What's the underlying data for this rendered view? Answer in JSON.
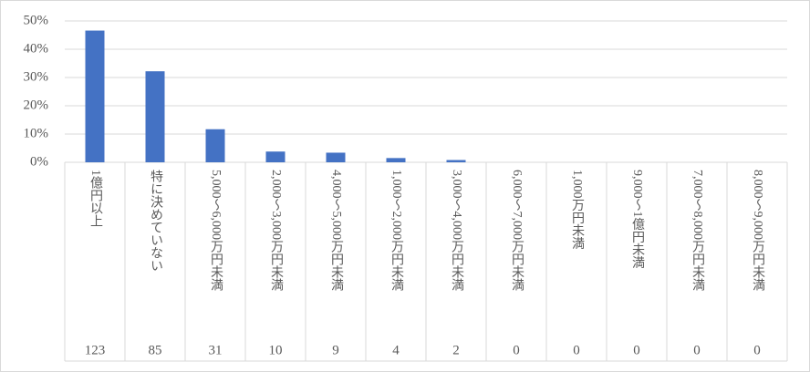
{
  "chart_data": {
    "type": "bar",
    "categories": [
      "1億円以上",
      "特に決めていない",
      "5,000～6,000万円未満",
      "2,000～3,000万円未満",
      "4,000～5,000万円未満",
      "1,000～2,000万円未満",
      "3,000～4,000万円未満",
      "6,000～7,000万円未満",
      "1,000万円未満",
      "9,000～1億円未満",
      "7,000～8,000万円未満",
      "8,000～9,000万円未満"
    ],
    "values": [
      46.6,
      32.2,
      11.7,
      3.8,
      3.4,
      1.5,
      0.8,
      0,
      0,
      0,
      0,
      0
    ],
    "table_values": [
      123,
      85,
      31,
      10,
      9,
      4,
      2,
      0,
      0,
      0,
      0,
      0
    ],
    "color": "#4472c4",
    "ylim": [
      0,
      50
    ],
    "yticks": [
      {
        "value": 0,
        "label": "0%"
      },
      {
        "value": 10,
        "label": "10%"
      },
      {
        "value": 20,
        "label": "20%"
      },
      {
        "value": 30,
        "label": "30%"
      },
      {
        "value": 40,
        "label": "40%"
      },
      {
        "value": 50,
        "label": "50%"
      }
    ],
    "grid": true
  }
}
